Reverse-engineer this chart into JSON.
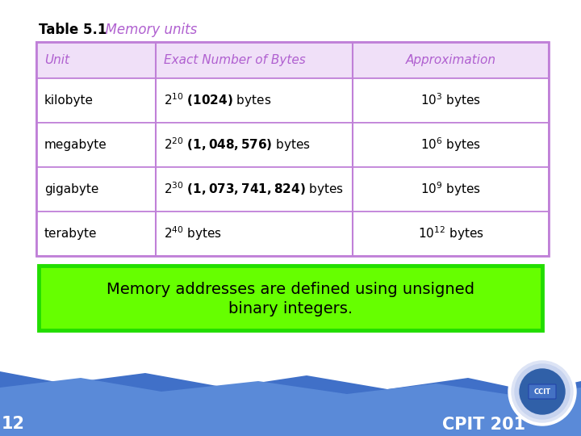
{
  "title_bold": "Table 5.1",
  "title_light": "  Memory units",
  "header": [
    "Unit",
    "Exact Number of Bytes",
    "Approximation"
  ],
  "header_bg": "#f0e0f8",
  "header_text_color": "#b060d0",
  "row_bg": "#ffffff",
  "table_border_color": "#c080d8",
  "note_text_line1": "Memory addresses are defined using unsigned",
  "note_text_line2": "binary integers.",
  "note_bg": "#66ff00",
  "note_border": "#22dd00",
  "note_text_color": "#000000",
  "footer_text": "CPIT 201",
  "footer_number": "12",
  "bg_color": "#ffffff",
  "wave_color1": "#4070c8",
  "wave_color2": "#5a8ad8",
  "title_bold_color": "#000000",
  "title_light_color": "#b060d0"
}
